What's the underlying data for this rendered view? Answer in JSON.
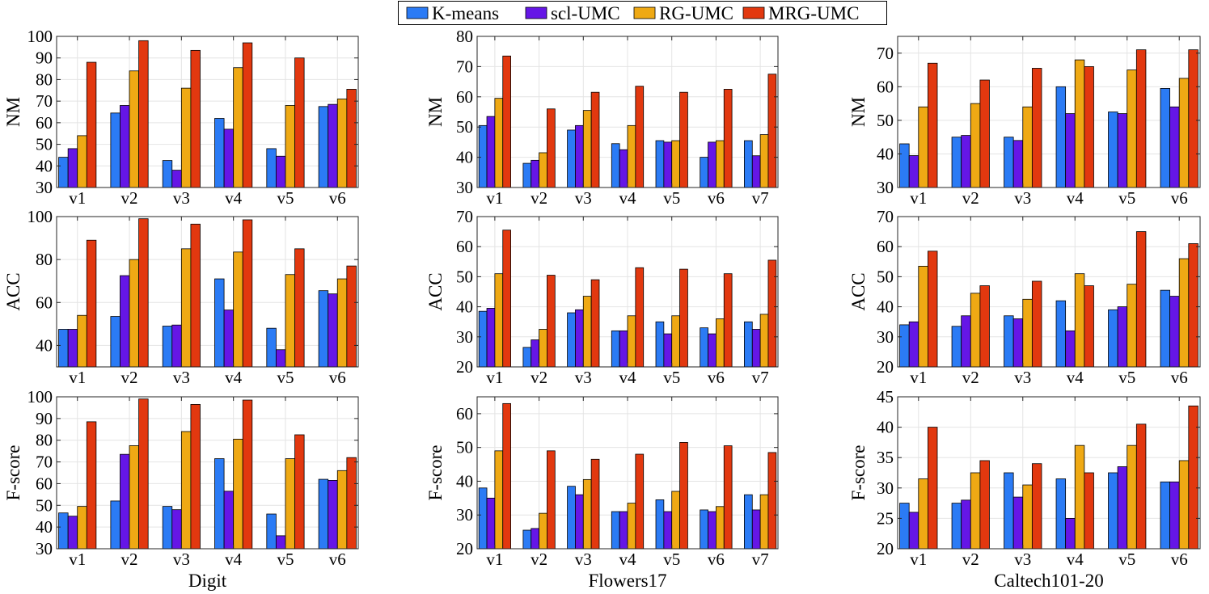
{
  "chart_data": {
    "type": "bar",
    "legend": [
      {
        "name": "K-means",
        "color": "#2b7bf5"
      },
      {
        "name": "scl-UMC",
        "color": "#6516e6"
      },
      {
        "name": "RG-UMC",
        "color": "#efa914"
      },
      {
        "name": "MRG-UMC",
        "color": "#e2380f"
      }
    ],
    "datasets": [
      {
        "xlabel": "Digit",
        "categories": [
          "v1",
          "v2",
          "v3",
          "v4",
          "v5",
          "v6"
        ],
        "panels": [
          {
            "ylabel": "NM",
            "ylim": [
              30,
              100
            ],
            "yticks": [
              30,
              40,
              50,
              60,
              70,
              80,
              90,
              100
            ],
            "series": [
              [
                44,
                64.5,
                42.5,
                62,
                48,
                67.5
              ],
              [
                48,
                68,
                38,
                57,
                44.5,
                68.5
              ],
              [
                54,
                84,
                76,
                85.5,
                68,
                71
              ],
              [
                88,
                98,
                93.5,
                97,
                90,
                75.5
              ]
            ]
          },
          {
            "ylabel": "ACC",
            "ylim": [
              30,
              100
            ],
            "yticks": [
              40,
              60,
              80,
              100
            ],
            "series": [
              [
                47.5,
                53.5,
                49,
                71,
                48,
                65.5
              ],
              [
                47.5,
                72.5,
                49.5,
                56.5,
                38,
                64
              ],
              [
                54,
                80,
                85,
                83.5,
                73,
                71
              ],
              [
                89,
                99,
                96.5,
                98.5,
                85,
                77
              ]
            ]
          },
          {
            "ylabel": "F-score",
            "ylim": [
              30,
              100
            ],
            "yticks": [
              30,
              40,
              50,
              60,
              70,
              80,
              90,
              100
            ],
            "series": [
              [
                46.5,
                52,
                49.5,
                71.5,
                46,
                62
              ],
              [
                45,
                73.5,
                48,
                56.5,
                36,
                61.5
              ],
              [
                49.5,
                77.5,
                84,
                80.5,
                71.5,
                66
              ],
              [
                88.5,
                99,
                96.5,
                98.5,
                82.5,
                72
              ]
            ]
          }
        ]
      },
      {
        "xlabel": "Flowers17",
        "categories": [
          "v1",
          "v2",
          "v3",
          "v4",
          "v5",
          "v6",
          "v7"
        ],
        "panels": [
          {
            "ylabel": "NM",
            "ylim": [
              30,
              80
            ],
            "yticks": [
              30,
              40,
              50,
              60,
              70,
              80
            ],
            "series": [
              [
                50.5,
                38,
                49,
                44.5,
                45.5,
                40,
                45.5
              ],
              [
                53.5,
                39,
                50.5,
                42.5,
                45,
                45,
                40.5
              ],
              [
                59.5,
                41.5,
                55.5,
                50.5,
                45.5,
                45.5,
                47.5
              ],
              [
                73.5,
                56,
                61.5,
                63.5,
                61.5,
                62.5,
                67.5
              ]
            ]
          },
          {
            "ylabel": "ACC",
            "ylim": [
              20,
              70
            ],
            "yticks": [
              20,
              30,
              40,
              50,
              60,
              70
            ],
            "series": [
              [
                38.5,
                26.5,
                38,
                32,
                35,
                33,
                35
              ],
              [
                39.5,
                29,
                39,
                32,
                31,
                31,
                32.5
              ],
              [
                51,
                32.5,
                43.5,
                37,
                37,
                36,
                37.5
              ],
              [
                65.5,
                50.5,
                49,
                53,
                52.5,
                51,
                55.5
              ]
            ]
          },
          {
            "ylabel": "F-score",
            "ylim": [
              20,
              65
            ],
            "yticks": [
              20,
              30,
              40,
              50,
              60
            ],
            "series": [
              [
                38,
                25.5,
                38.5,
                31,
                34.5,
                31.5,
                36
              ],
              [
                35,
                26,
                36,
                31,
                31,
                31,
                31.5
              ],
              [
                49,
                30.5,
                40.5,
                33.5,
                37,
                32.5,
                36
              ],
              [
                63,
                49,
                46.5,
                48,
                51.5,
                50.5,
                48.5
              ]
            ]
          }
        ]
      },
      {
        "xlabel": "Caltech101-20",
        "categories": [
          "v1",
          "v2",
          "v3",
          "v4",
          "v5",
          "v6"
        ],
        "panels": [
          {
            "ylabel": "NM",
            "ylim": [
              30,
              75
            ],
            "yticks": [
              30,
              40,
              50,
              60,
              70
            ],
            "series": [
              [
                43,
                45,
                45,
                60,
                52.5,
                59.5
              ],
              [
                39.5,
                45.5,
                44,
                52,
                52,
                54
              ],
              [
                54,
                55,
                54,
                68,
                65,
                62.5
              ],
              [
                67,
                62,
                65.5,
                66,
                71,
                71
              ]
            ]
          },
          {
            "ylabel": "ACC",
            "ylim": [
              20,
              70
            ],
            "yticks": [
              20,
              30,
              40,
              50,
              60,
              70
            ],
            "series": [
              [
                34,
                33.5,
                37,
                42,
                39,
                45.5
              ],
              [
                35,
                37,
                36,
                32,
                40,
                43.5
              ],
              [
                53.5,
                44.5,
                42.5,
                51,
                47.5,
                56
              ],
              [
                58.5,
                47,
                48.5,
                47,
                65,
                61
              ]
            ]
          },
          {
            "ylabel": "F-score",
            "ylim": [
              20,
              45
            ],
            "yticks": [
              20,
              25,
              30,
              35,
              40,
              45
            ],
            "series": [
              [
                27.5,
                27.5,
                32.5,
                31.5,
                32.5,
                31
              ],
              [
                26,
                28,
                28.5,
                25,
                33.5,
                31
              ],
              [
                31.5,
                32.5,
                30.5,
                37,
                37,
                34.5
              ],
              [
                40,
                34.5,
                34,
                32.5,
                40.5,
                43.5
              ]
            ]
          }
        ]
      }
    ]
  }
}
